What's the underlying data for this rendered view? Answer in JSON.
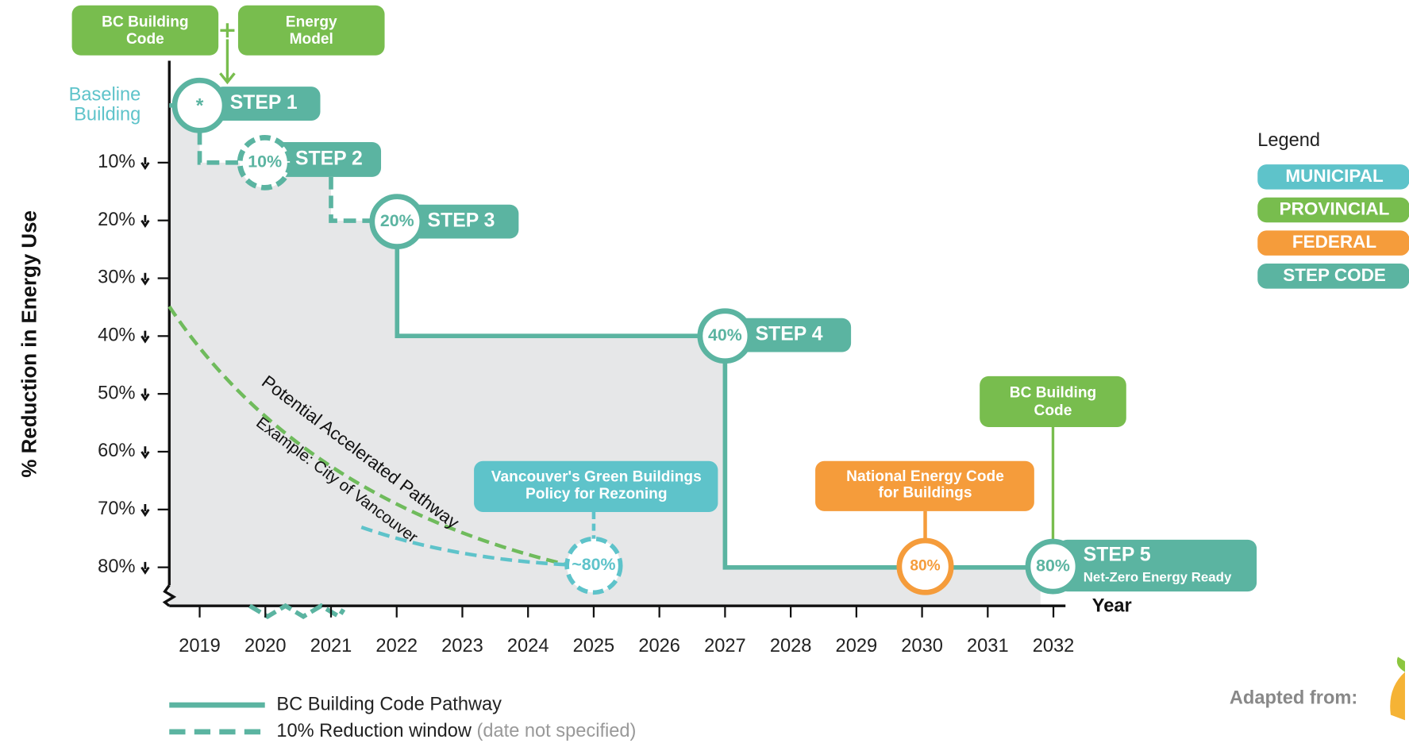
{
  "header": {
    "boxes": [
      {
        "lines": [
          "BC Building",
          "Code"
        ]
      },
      {
        "lines": [
          "Energy",
          "Model"
        ]
      }
    ],
    "baseline": [
      "Baseline",
      "Building"
    ]
  },
  "y_axis": {
    "title": "% Reduction in Energy Use",
    "ticks": [
      "10%",
      "20%",
      "30%",
      "40%",
      "50%",
      "60%",
      "70%",
      "80%"
    ]
  },
  "x_axis": {
    "title": "Year",
    "ticks": [
      "2019",
      "2020",
      "2021",
      "2022",
      "2023",
      "2024",
      "2025",
      "2026",
      "2027",
      "2028",
      "2029",
      "2030",
      "2031",
      "2032"
    ]
  },
  "steps": [
    {
      "marker": "*",
      "label": "STEP 1"
    },
    {
      "marker": "10%",
      "label": "STEP 2"
    },
    {
      "marker": "20%",
      "label": "STEP 3"
    },
    {
      "marker": "40%",
      "label": "STEP 4"
    },
    {
      "marker": "80%",
      "label": "STEP 5",
      "sublabel": "Net-Zero Energy Ready"
    }
  ],
  "callouts": [
    {
      "lines": [
        "Vancouver's Green Buildings",
        "Policy for Rezoning"
      ],
      "marker": "~80%"
    },
    {
      "lines": [
        "National Energy Code",
        "for Buildings"
      ],
      "marker": "80%"
    },
    {
      "lines": [
        "BC Building",
        "Code"
      ]
    }
  ],
  "pathway_labels": [
    "Potential Accelerated Pathway",
    "Example: City of Vancouver"
  ],
  "legend": {
    "title": "Legend",
    "items": [
      "MUNICIPAL",
      "PROVINCIAL",
      "FEDERAL",
      "STEP CODE"
    ]
  },
  "key": [
    {
      "label": "BC Building Code Pathway"
    },
    {
      "label": "10% Reduction window",
      "note": "(date not specified)"
    }
  ],
  "credit": "Adapted from:"
}
